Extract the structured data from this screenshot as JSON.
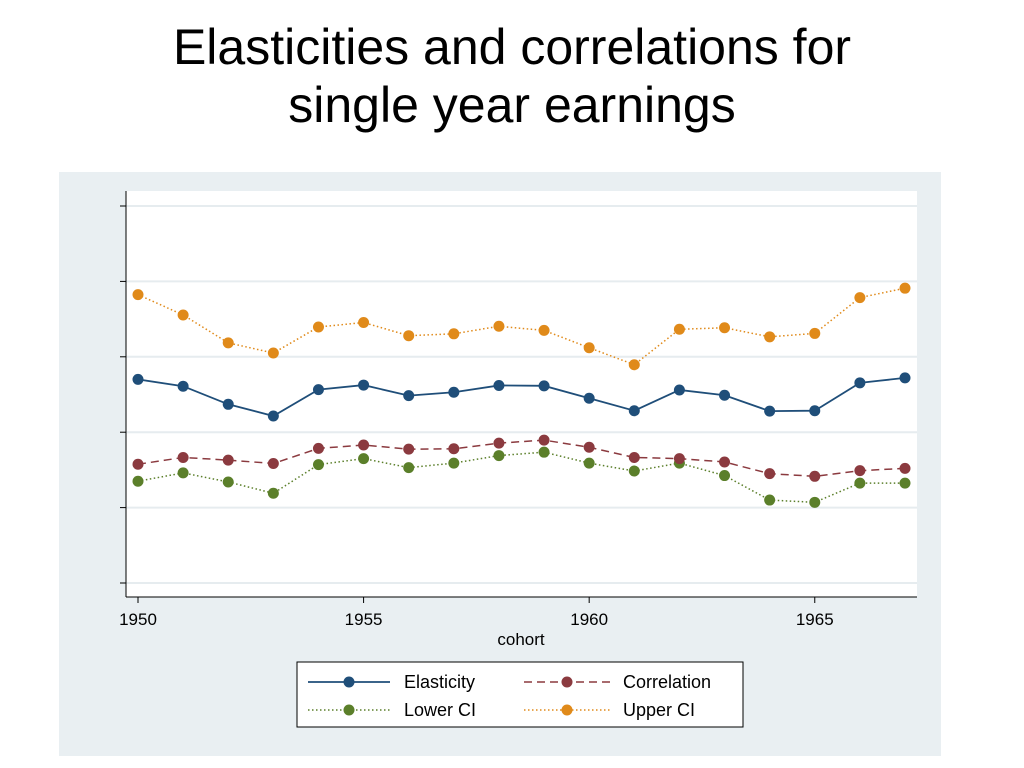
{
  "slide": {
    "title_line1": "Elasticities and correlations for",
    "title_line2": "single year earnings"
  },
  "chart_data": {
    "type": "line",
    "title": "Elasticities and correlations for single year earnings",
    "xlabel": "cohort",
    "ylabel": "",
    "x": [
      1950,
      1951,
      1952,
      1953,
      1954,
      1955,
      1956,
      1957,
      1958,
      1959,
      1960,
      1961,
      1962,
      1963,
      1964,
      1965,
      1966,
      1967
    ],
    "xticks": [
      1950,
      1955,
      1960,
      1965
    ],
    "xlim": [
      1950,
      1967
    ],
    "ylim": [
      0,
      1
    ],
    "yticks_unlabeled": 6,
    "grid": true,
    "legend_position": "bottom",
    "series": [
      {
        "name": "Elasticity",
        "color": "#1f4e79",
        "line_style": "solid",
        "values": [
          0.54,
          0.522,
          0.474,
          0.443,
          0.513,
          0.525,
          0.497,
          0.506,
          0.524,
          0.523,
          0.49,
          0.457,
          0.512,
          0.498,
          0.456,
          0.457,
          0.531,
          0.544
        ]
      },
      {
        "name": "Correlation",
        "color": "#8b3a3f",
        "line_style": "dashed",
        "values": [
          0.315,
          0.333,
          0.326,
          0.317,
          0.357,
          0.366,
          0.355,
          0.356,
          0.371,
          0.379,
          0.36,
          0.333,
          0.33,
          0.321,
          0.29,
          0.283,
          0.298,
          0.304
        ]
      },
      {
        "name": "Lower CI",
        "color": "#5b7f2a",
        "line_style": "dotted",
        "values": [
          0.27,
          0.292,
          0.268,
          0.238,
          0.314,
          0.33,
          0.306,
          0.318,
          0.338,
          0.347,
          0.318,
          0.297,
          0.318,
          0.285,
          0.22,
          0.214,
          0.265,
          0.265
        ]
      },
      {
        "name": "Upper CI",
        "color": "#e08a1a",
        "line_style": "dotted",
        "values": [
          0.765,
          0.711,
          0.637,
          0.61,
          0.679,
          0.691,
          0.656,
          0.661,
          0.681,
          0.67,
          0.624,
          0.579,
          0.673,
          0.677,
          0.653,
          0.662,
          0.757,
          0.782
        ]
      }
    ]
  }
}
